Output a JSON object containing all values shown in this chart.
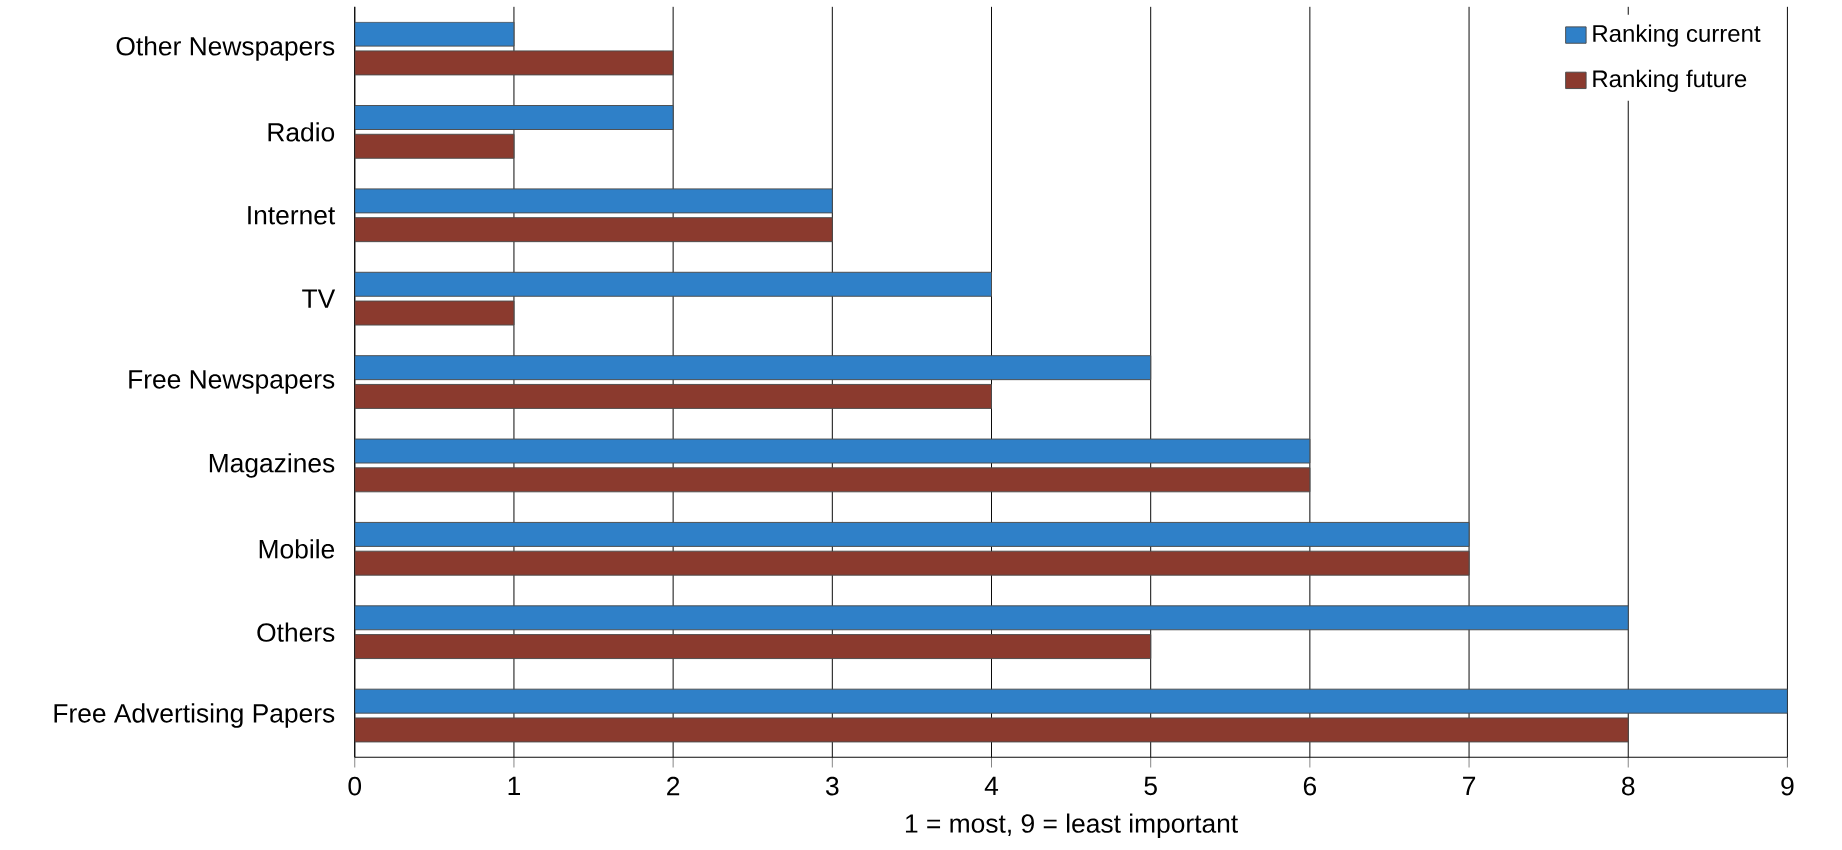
{
  "chart_data": {
    "type": "bar",
    "orientation": "horizontal",
    "xlabel": "1 = most, 9 = least important",
    "categories": [
      "Other Newspapers",
      "Radio",
      "Internet",
      "TV",
      "Free Newspapers",
      "Magazines",
      "Mobile",
      "Others",
      "Free Advertising Papers"
    ],
    "series": [
      {
        "name": "Ranking current",
        "color": "#2f80c8",
        "values": [
          1,
          2,
          3,
          4,
          5,
          6,
          7,
          8,
          9
        ]
      },
      {
        "name": "Ranking future",
        "color": "#8b3a2e",
        "values": [
          2,
          1,
          3,
          1,
          4,
          6,
          7,
          5,
          8
        ]
      }
    ],
    "xlim": [
      0,
      9
    ],
    "xticks": [
      0,
      1,
      2,
      3,
      4,
      5,
      6,
      7,
      8,
      9
    ],
    "grid": "x",
    "legend": "top right"
  }
}
